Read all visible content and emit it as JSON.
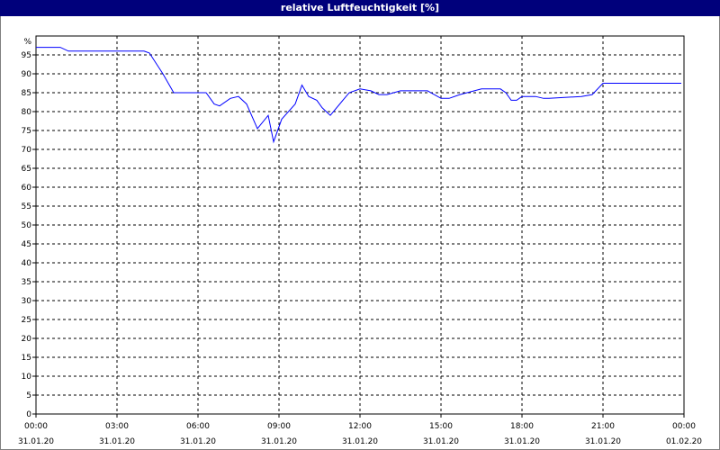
{
  "window": {
    "title": "relative Luftfeuchtigkeit [%]"
  },
  "chart_data": {
    "type": "line",
    "title": "relative Luftfeuchtigkeit [%]",
    "y_unit_label": "%",
    "ylim": [
      0,
      100
    ],
    "y_ticks": [
      "95",
      "90",
      "85",
      "80",
      "75",
      "70",
      "65",
      "60",
      "55",
      "50",
      "45",
      "40",
      "35",
      "30",
      "25",
      "20",
      "15",
      "10",
      "5",
      "0"
    ],
    "y_tick_values": [
      95,
      90,
      85,
      80,
      75,
      70,
      65,
      60,
      55,
      50,
      45,
      40,
      35,
      30,
      25,
      20,
      15,
      10,
      5,
      0
    ],
    "xlim": [
      0,
      24
    ],
    "x_tick_values": [
      0,
      3,
      6,
      9,
      12,
      15,
      18,
      21,
      24
    ],
    "x_ticks": [
      {
        "time": "00:00",
        "date": "31.01.20"
      },
      {
        "time": "03:00",
        "date": "31.01.20"
      },
      {
        "time": "06:00",
        "date": "31.01.20"
      },
      {
        "time": "09:00",
        "date": "31.01.20"
      },
      {
        "time": "12:00",
        "date": "31.01.20"
      },
      {
        "time": "15:00",
        "date": "31.01.20"
      },
      {
        "time": "18:00",
        "date": "31.01.20"
      },
      {
        "time": "21:00",
        "date": "31.01.20"
      },
      {
        "time": "00:00",
        "date": "01.02.20"
      }
    ],
    "grid": true,
    "line_color": "#0000ff",
    "series": [
      {
        "x": [
          0,
          0.9,
          1.2,
          4,
          4.2,
          4.7,
          5.1,
          5.7,
          6.3,
          6.6,
          6.8,
          7.2,
          7.5,
          7.8,
          8.2,
          8.6,
          8.8,
          9.1,
          9.6,
          9.85,
          10.1,
          10.4,
          10.6,
          10.9,
          11.6,
          12,
          12.4,
          12.7,
          13,
          13.5,
          14.5,
          15,
          15.3,
          15.7,
          16.5,
          17.2,
          17.4,
          17.6,
          17.8,
          18,
          18.5,
          18.8,
          19,
          20.2,
          20.6,
          21,
          23.9
        ],
        "y": [
          97,
          97,
          96,
          96,
          95.5,
          90,
          85,
          85,
          85,
          82,
          81.5,
          83.5,
          84,
          82,
          75.5,
          79,
          72,
          78,
          82,
          87,
          84,
          83,
          81,
          79,
          85,
          86,
          85.5,
          84.5,
          84.5,
          85.5,
          85.5,
          83.5,
          83.5,
          84.5,
          86,
          86,
          85,
          83,
          83,
          84,
          84,
          83.5,
          83.5,
          84,
          84.5,
          87.5,
          87.5
        ]
      }
    ]
  }
}
